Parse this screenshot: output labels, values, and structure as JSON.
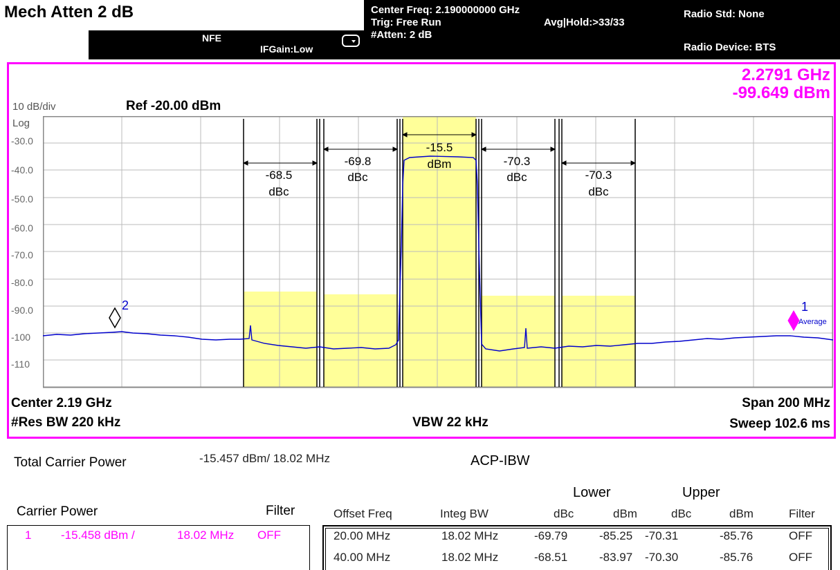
{
  "header": {
    "title": "Mech Atten 2 dB",
    "nfe": "NFE",
    "ifgain": "IFGain:Low",
    "center_freq": "Center Freq: 2.190000000 GHz",
    "trig": "Trig: Free Run",
    "avg_hold": "Avg|Hold:>33/33",
    "atten": "#Atten: 2 dB",
    "radio_std": "Radio Std: None",
    "radio_device": "Radio Device: BTS"
  },
  "marker_readout": {
    "freq": "2.2791 GHz",
    "level": "-99.649 dBm"
  },
  "scale": {
    "per_div": "10 dB/div",
    "ref": "Ref -20.00 dBm",
    "mode": "Log"
  },
  "axis_labels": [
    "-30.0",
    "-40.0",
    "-50.0",
    "-60.0",
    "-70.0",
    "-80.0",
    "-90.0",
    "-100",
    "-110"
  ],
  "channels": {
    "main": {
      "value": "-15.5",
      "unit": "dBm"
    },
    "lower1": {
      "value": "-69.8",
      "unit": "dBc"
    },
    "lower2": {
      "value": "-68.5",
      "unit": "dBc"
    },
    "upper1": {
      "value": "-70.3",
      "unit": "dBc"
    },
    "upper2": {
      "value": "-70.3",
      "unit": "dBc"
    }
  },
  "markers": {
    "m1": "1",
    "m1_note": "Average",
    "m2": "2"
  },
  "footer": {
    "center": "Center  2.19 GHz",
    "res_bw": "#Res BW  220 kHz",
    "vbw": "VBW  22 kHz",
    "span": "Span 200 MHz",
    "sweep": "Sweep  102.6 ms"
  },
  "results": {
    "total_label": "Total Carrier Power",
    "total_value": "-15.457 dBm/ 18.02 MHz",
    "acp_title": "ACP-IBW",
    "carrier_header": "Carrier Power",
    "filter_header": "Filter",
    "carrier_row": {
      "index": "1",
      "power": "-15.458 dBm /",
      "bw": "18.02 MHz",
      "filter": "OFF"
    },
    "lower_header": "Lower",
    "upper_header": "Upper",
    "columns": [
      "Offset Freq",
      "Integ BW",
      "dBc",
      "dBm",
      "dBc",
      "dBm",
      "Filter"
    ],
    "rows": [
      [
        "20.00 MHz",
        "18.02 MHz",
        "-69.79",
        "-85.25",
        "-70.31",
        "-85.76",
        "OFF"
      ],
      [
        "40.00 MHz",
        "18.02 MHz",
        "-68.51",
        "-83.97",
        "-70.30",
        "-85.76",
        "OFF"
      ]
    ]
  },
  "colors": {
    "trace": "#0000cc",
    "channel_fill": "#ffff99",
    "marker": "#ff00ff",
    "frame": "#ff00ff"
  }
}
